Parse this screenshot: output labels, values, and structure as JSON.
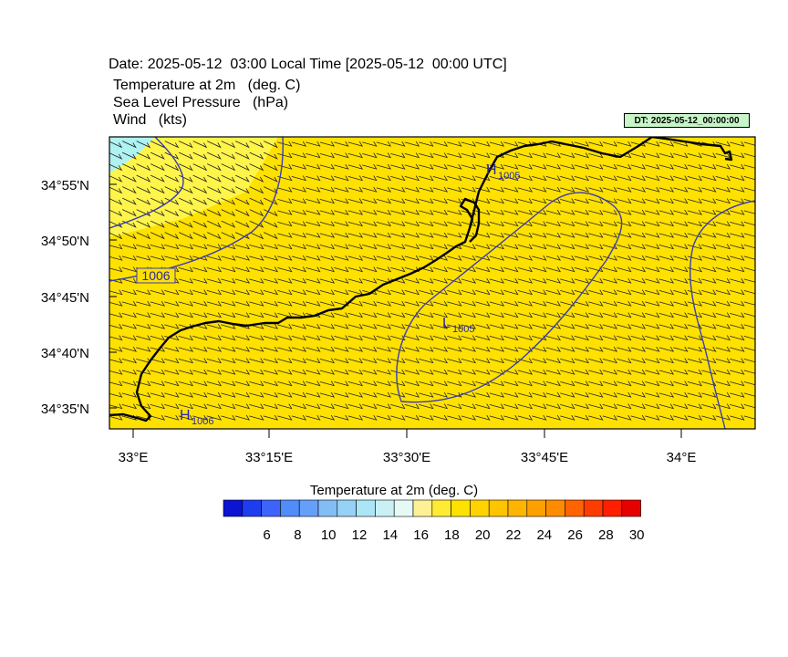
{
  "header": {
    "title": "Date: 2025-05-12  03:00 Local Time [2025-05-12  00:00 UTC]",
    "field1": "Temperature at 2m   (deg. C)",
    "field2": "Sea Level Pressure   (hPa)",
    "field3": "Wind   (kts)",
    "dt_label": "DT: 2025-05-12_00:00:00"
  },
  "map": {
    "lat_labels": [
      "34°55'N",
      "34°50'N",
      "34°45'N",
      "34°40'N",
      "34°35'N"
    ],
    "lon_labels": [
      "33°E",
      "33°15'E",
      "33°30'E",
      "33°45'E",
      "34°E"
    ],
    "pressure_labels": [
      {
        "letter": "H",
        "value": "1005"
      },
      {
        "letter": "L",
        "value": "1005"
      },
      {
        "letter": "H",
        "value": "1006"
      },
      {
        "contour": "1006"
      }
    ],
    "colors": {
      "fill_main": "#ffe100",
      "fill_light": "#fff54a",
      "fill_cool": "#aef2f2",
      "contour": "#3c3cb4",
      "coast": "#000000"
    }
  },
  "colorbar": {
    "title": "Temperature at 2m  (deg. C)",
    "tick_labels": [
      "6",
      "8",
      "10",
      "12",
      "14",
      "16",
      "18",
      "20",
      "22",
      "24",
      "26",
      "28",
      "30"
    ],
    "colors": [
      "#0a14d2",
      "#1e3cf0",
      "#3c64fa",
      "#508cfa",
      "#64a0fa",
      "#82bef5",
      "#96d2f5",
      "#aae6f5",
      "#c8f0f5",
      "#e6faf5",
      "#fff096",
      "#ffeb32",
      "#ffe100",
      "#ffd200",
      "#ffc300",
      "#ffb400",
      "#ffa000",
      "#ff8c00",
      "#ff6400",
      "#ff3c00",
      "#ff1e00",
      "#e60000"
    ]
  }
}
